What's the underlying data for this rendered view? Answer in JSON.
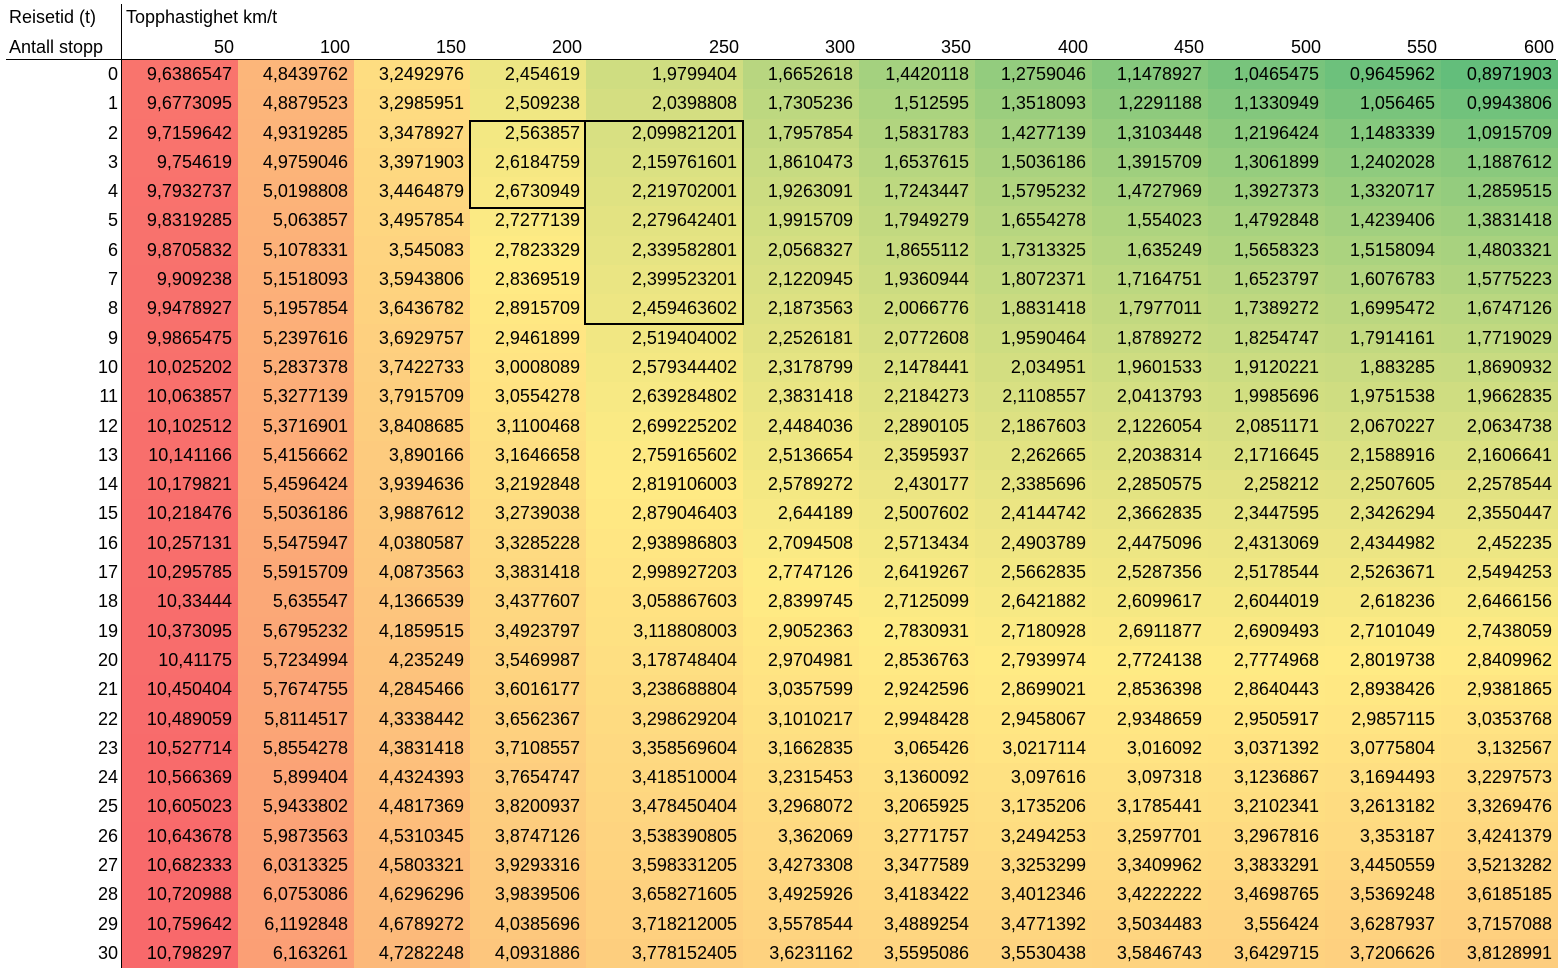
{
  "header": {
    "corner_top": "Reisetid (t)",
    "corner_bottom": "Antall stopp",
    "speed_title": "Topphastighet km/t"
  },
  "speeds": [
    "50",
    "100",
    "150",
    "200",
    "250",
    "300",
    "350",
    "400",
    "450",
    "500",
    "550",
    "600"
  ],
  "stops": [
    "0",
    "1",
    "2",
    "3",
    "4",
    "5",
    "6",
    "7",
    "8",
    "9",
    "10",
    "11",
    "12",
    "13",
    "14",
    "15",
    "16",
    "17",
    "18",
    "19",
    "20",
    "21",
    "22",
    "23",
    "24",
    "25",
    "26",
    "27",
    "28",
    "29",
    "30"
  ],
  "table": [
    [
      "9,6386547",
      "4,8439762",
      "3,2492976",
      "2,454619",
      "1,9799404",
      "1,6652618",
      "1,4420118",
      "1,2759046",
      "1,1478927",
      "1,0465475",
      "0,9645962",
      "0,8971903"
    ],
    [
      "9,6773095",
      "4,8879523",
      "3,2985951",
      "2,509238",
      "2,0398808",
      "1,7305236",
      "1,512595",
      "1,3518093",
      "1,2291188",
      "1,1330949",
      "1,056465",
      "0,9943806"
    ],
    [
      "9,7159642",
      "4,9319285",
      "3,3478927",
      "2,563857",
      "2,099821201",
      "1,7957854",
      "1,5831783",
      "1,4277139",
      "1,3103448",
      "1,2196424",
      "1,1483339",
      "1,0915709"
    ],
    [
      "9,754619",
      "4,9759046",
      "3,3971903",
      "2,6184759",
      "2,159761601",
      "1,8610473",
      "1,6537615",
      "1,5036186",
      "1,3915709",
      "1,3061899",
      "1,2402028",
      "1,1887612"
    ],
    [
      "9,7932737",
      "5,0198808",
      "3,4464879",
      "2,6730949",
      "2,219702001",
      "1,9263091",
      "1,7243447",
      "1,5795232",
      "1,4727969",
      "1,3927373",
      "1,3320717",
      "1,2859515"
    ],
    [
      "9,8319285",
      "5,063857",
      "3,4957854",
      "2,7277139",
      "2,279642401",
      "1,9915709",
      "1,7949279",
      "1,6554278",
      "1,554023",
      "1,4792848",
      "1,4239406",
      "1,3831418"
    ],
    [
      "9,8705832",
      "5,1078331",
      "3,545083",
      "2,7823329",
      "2,339582801",
      "2,0568327",
      "1,8655112",
      "1,7313325",
      "1,635249",
      "1,5658323",
      "1,5158094",
      "1,4803321"
    ],
    [
      "9,909238",
      "5,1518093",
      "3,5943806",
      "2,8369519",
      "2,399523201",
      "2,1220945",
      "1,9360944",
      "1,8072371",
      "1,7164751",
      "1,6523797",
      "1,6076783",
      "1,5775223"
    ],
    [
      "9,9478927",
      "5,1957854",
      "3,6436782",
      "2,8915709",
      "2,459463602",
      "2,1873563",
      "2,0066776",
      "1,8831418",
      "1,7977011",
      "1,7389272",
      "1,6995472",
      "1,6747126"
    ],
    [
      "9,9865475",
      "5,2397616",
      "3,6929757",
      "2,9461899",
      "2,519404002",
      "2,2526181",
      "2,0772608",
      "1,9590464",
      "1,8789272",
      "1,8254747",
      "1,7914161",
      "1,7719029"
    ],
    [
      "10,025202",
      "5,2837378",
      "3,7422733",
      "3,0008089",
      "2,579344402",
      "2,3178799",
      "2,1478441",
      "2,034951",
      "1,9601533",
      "1,9120221",
      "1,883285",
      "1,8690932"
    ],
    [
      "10,063857",
      "5,3277139",
      "3,7915709",
      "3,0554278",
      "2,639284802",
      "2,3831418",
      "2,2184273",
      "2,1108557",
      "2,0413793",
      "1,9985696",
      "1,9751538",
      "1,9662835"
    ],
    [
      "10,102512",
      "5,3716901",
      "3,8408685",
      "3,1100468",
      "2,699225202",
      "2,4484036",
      "2,2890105",
      "2,1867603",
      "2,1226054",
      "2,0851171",
      "2,0670227",
      "2,0634738"
    ],
    [
      "10,141166",
      "5,4156662",
      "3,890166",
      "3,1646658",
      "2,759165602",
      "2,5136654",
      "2,3595937",
      "2,262665",
      "2,2038314",
      "2,1716645",
      "2,1588916",
      "2,1606641"
    ],
    [
      "10,179821",
      "5,4596424",
      "3,9394636",
      "3,2192848",
      "2,819106003",
      "2,5789272",
      "2,430177",
      "2,3385696",
      "2,2850575",
      "2,258212",
      "2,2507605",
      "2,2578544"
    ],
    [
      "10,218476",
      "5,5036186",
      "3,9887612",
      "3,2739038",
      "2,879046403",
      "2,644189",
      "2,5007602",
      "2,4144742",
      "2,3662835",
      "2,3447595",
      "2,3426294",
      "2,3550447"
    ],
    [
      "10,257131",
      "5,5475947",
      "4,0380587",
      "3,3285228",
      "2,938986803",
      "2,7094508",
      "2,5713434",
      "2,4903789",
      "2,4475096",
      "2,4313069",
      "2,4344982",
      "2,452235"
    ],
    [
      "10,295785",
      "5,5915709",
      "4,0873563",
      "3,3831418",
      "2,998927203",
      "2,7747126",
      "2,6419267",
      "2,5662835",
      "2,5287356",
      "2,5178544",
      "2,5263671",
      "2,5494253"
    ],
    [
      "10,33444",
      "5,635547",
      "4,1366539",
      "3,4377607",
      "3,058867603",
      "2,8399745",
      "2,7125099",
      "2,6421882",
      "2,6099617",
      "2,6044019",
      "2,618236",
      "2,6466156"
    ],
    [
      "10,373095",
      "5,6795232",
      "4,1859515",
      "3,4923797",
      "3,118808003",
      "2,9052363",
      "2,7830931",
      "2,7180928",
      "2,6911877",
      "2,6909493",
      "2,7101049",
      "2,7438059"
    ],
    [
      "10,41175",
      "5,7234994",
      "4,235249",
      "3,5469987",
      "3,178748404",
      "2,9704981",
      "2,8536763",
      "2,7939974",
      "2,7724138",
      "2,7774968",
      "2,8019738",
      "2,8409962"
    ],
    [
      "10,450404",
      "5,7674755",
      "4,2845466",
      "3,6016177",
      "3,238688804",
      "3,0357599",
      "2,9242596",
      "2,8699021",
      "2,8536398",
      "2,8640443",
      "2,8938426",
      "2,9381865"
    ],
    [
      "10,489059",
      "5,8114517",
      "4,3338442",
      "3,6562367",
      "3,298629204",
      "3,1010217",
      "2,9948428",
      "2,9458067",
      "2,9348659",
      "2,9505917",
      "2,9857115",
      "3,0353768"
    ],
    [
      "10,527714",
      "5,8554278",
      "4,3831418",
      "3,7108557",
      "3,358569604",
      "3,1662835",
      "3,065426",
      "3,0217114",
      "3,016092",
      "3,0371392",
      "3,0775804",
      "3,132567"
    ],
    [
      "10,566369",
      "5,899404",
      "4,4324393",
      "3,7654747",
      "3,418510004",
      "3,2315453",
      "3,1360092",
      "3,097616",
      "3,097318",
      "3,1236867",
      "3,1694493",
      "3,2297573"
    ],
    [
      "10,605023",
      "5,9433802",
      "4,4817369",
      "3,8200937",
      "3,478450404",
      "3,2968072",
      "3,2065925",
      "3,1735206",
      "3,1785441",
      "3,2102341",
      "3,2613182",
      "3,3269476"
    ],
    [
      "10,643678",
      "5,9873563",
      "4,5310345",
      "3,8747126",
      "3,538390805",
      "3,362069",
      "3,2771757",
      "3,2494253",
      "3,2597701",
      "3,2967816",
      "3,353187",
      "3,4241379"
    ],
    [
      "10,682333",
      "6,0313325",
      "4,5803321",
      "3,9293316",
      "3,598331205",
      "3,4273308",
      "3,3477589",
      "3,3253299",
      "3,3409962",
      "3,3833291",
      "3,4450559",
      "3,5213282"
    ],
    [
      "10,720988",
      "6,0753086",
      "4,6296296",
      "3,9839506",
      "3,658271605",
      "3,4925926",
      "3,4183422",
      "3,4012346",
      "3,4222222",
      "3,4698765",
      "3,5369248",
      "3,6185185"
    ],
    [
      "10,759642",
      "6,1192848",
      "4,6789272",
      "4,0385696",
      "3,718212005",
      "3,5578544",
      "3,4889254",
      "3,4771392",
      "3,5034483",
      "3,556424",
      "3,6287937",
      "3,7157088"
    ],
    [
      "10,798297",
      "6,163261",
      "4,7282248",
      "4,0931886",
      "3,778152405",
      "3,6231162",
      "3,5595086",
      "3,5530438",
      "3,5846743",
      "3,6429715",
      "3,7206626",
      "3,8128991"
    ]
  ]
}
